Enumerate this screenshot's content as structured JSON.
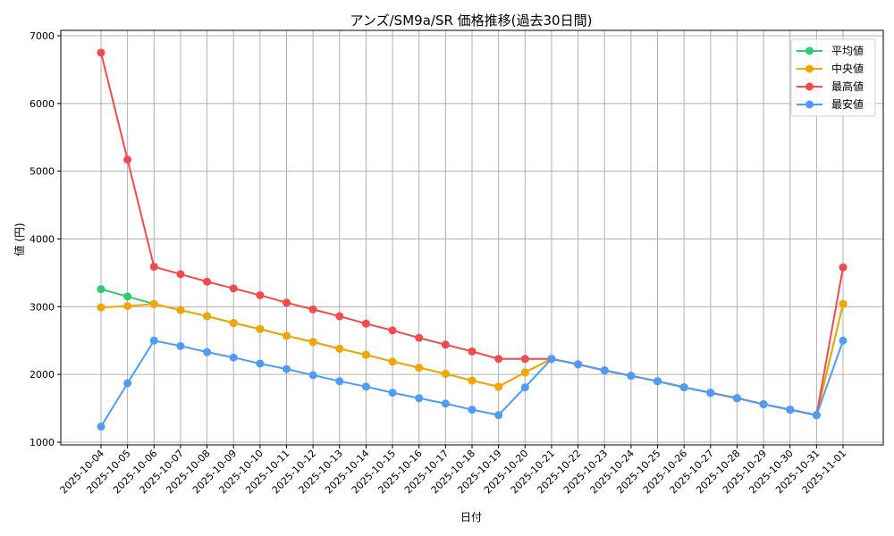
{
  "chart_data": {
    "type": "line",
    "title": "アンズ/SM9a/SR 価格推移(過去30日間)",
    "xlabel": "日付",
    "ylabel": "値 (円)",
    "ylim": [
      1000,
      7000
    ],
    "yticks": [
      1000,
      2000,
      3000,
      4000,
      5000,
      6000,
      7000
    ],
    "grid": true,
    "legend_position": "upper right",
    "x": [
      "2025-10-04",
      "2025-10-05",
      "2025-10-06",
      "2025-10-07",
      "2025-10-08",
      "2025-10-09",
      "2025-10-10",
      "2025-10-11",
      "2025-10-12",
      "2025-10-13",
      "2025-10-14",
      "2025-10-15",
      "2025-10-16",
      "2025-10-17",
      "2025-10-18",
      "2025-10-19",
      "2025-10-20",
      "2025-10-21",
      "2025-10-22",
      "2025-10-23",
      "2025-10-24",
      "2025-10-25",
      "2025-10-26",
      "2025-10-27",
      "2025-10-28",
      "2025-10-29",
      "2025-10-30",
      "2025-10-31",
      "2025-11-01"
    ],
    "series": [
      {
        "name": "平均値",
        "color": "#2ecc71",
        "values": [
          3260,
          3150,
          3040,
          2950,
          2860,
          2760,
          2670,
          2570,
          2480,
          2380,
          2290,
          2190,
          2100,
          2010,
          1910,
          1820,
          2030,
          2230,
          2150,
          2060,
          1980,
          1900,
          1810,
          1730,
          1650,
          1560,
          1480,
          1400,
          3040
        ]
      },
      {
        "name": "中央値",
        "color": "#f5a500",
        "values": [
          2990,
          3010,
          3040,
          2950,
          2860,
          2760,
          2670,
          2570,
          2480,
          2380,
          2290,
          2190,
          2100,
          2010,
          1910,
          1820,
          2030,
          2230,
          2150,
          2060,
          1980,
          1900,
          1810,
          1730,
          1650,
          1560,
          1480,
          1400,
          3040
        ]
      },
      {
        "name": "最高値",
        "color": "#f24b4b",
        "values": [
          6750,
          5170,
          3590,
          3480,
          3370,
          3270,
          3170,
          3060,
          2960,
          2860,
          2750,
          2650,
          2540,
          2440,
          2340,
          2230,
          2230,
          2230,
          2150,
          2060,
          1980,
          1900,
          1810,
          1730,
          1650,
          1560,
          1480,
          1400,
          3580
        ]
      },
      {
        "name": "最安値",
        "color": "#4e9cf5",
        "values": [
          1230,
          1870,
          2500,
          2420,
          2330,
          2250,
          2160,
          2080,
          1990,
          1900,
          1820,
          1730,
          1650,
          1570,
          1480,
          1400,
          1810,
          2230,
          2150,
          2060,
          1980,
          1900,
          1810,
          1730,
          1650,
          1560,
          1480,
          1400,
          2500
        ]
      }
    ]
  }
}
